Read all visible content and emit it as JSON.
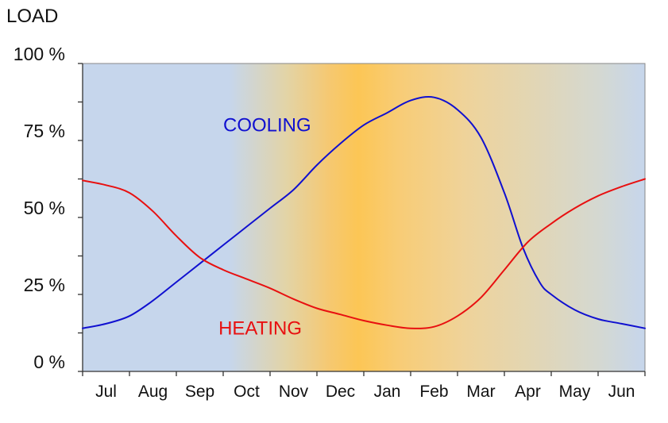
{
  "chart_data": {
    "type": "line",
    "ylabel": "LOAD",
    "xlabel": "",
    "categories": [
      "Jul",
      "Aug",
      "Sep",
      "Oct",
      "Nov",
      "Dec",
      "Jan",
      "Feb",
      "Mar",
      "Apr",
      "May",
      "Jun"
    ],
    "y_ticks": [
      "0 %",
      "25 %",
      "50 %",
      "75 %",
      "100 %"
    ],
    "ylim": [
      0,
      100
    ],
    "grid": false,
    "series": [
      {
        "name": "COOLING",
        "color": "#1010d0",
        "points": [
          [
            0.0,
            14
          ],
          [
            0.5,
            15.5
          ],
          [
            1.0,
            18
          ],
          [
            1.5,
            23
          ],
          [
            2.0,
            29
          ],
          [
            2.5,
            35
          ],
          [
            3.0,
            41
          ],
          [
            3.5,
            47
          ],
          [
            4.0,
            53
          ],
          [
            4.5,
            59
          ],
          [
            5.0,
            67
          ],
          [
            5.5,
            74
          ],
          [
            6.0,
            80
          ],
          [
            6.5,
            84
          ],
          [
            7.0,
            88
          ],
          [
            7.5,
            89
          ],
          [
            8.0,
            85
          ],
          [
            8.5,
            76
          ],
          [
            9.0,
            58
          ],
          [
            9.4,
            40
          ],
          [
            9.75,
            29
          ],
          [
            10.0,
            25
          ],
          [
            10.5,
            20
          ],
          [
            11.0,
            17
          ],
          [
            11.5,
            15.5
          ],
          [
            12.0,
            14
          ]
        ]
      },
      {
        "name": "HEATING",
        "color": "#e81010",
        "points": [
          [
            0.0,
            62
          ],
          [
            0.5,
            60.5
          ],
          [
            1.0,
            58
          ],
          [
            1.5,
            52
          ],
          [
            2.0,
            44
          ],
          [
            2.5,
            37
          ],
          [
            3.0,
            33
          ],
          [
            3.5,
            30
          ],
          [
            4.0,
            27
          ],
          [
            4.5,
            23.5
          ],
          [
            5.0,
            20.5
          ],
          [
            5.5,
            18.5
          ],
          [
            6.0,
            16.5
          ],
          [
            6.5,
            15
          ],
          [
            7.0,
            14
          ],
          [
            7.5,
            14.5
          ],
          [
            8.0,
            18
          ],
          [
            8.5,
            24
          ],
          [
            9.0,
            33
          ],
          [
            9.5,
            42
          ],
          [
            10.0,
            48
          ],
          [
            10.5,
            53
          ],
          [
            11.0,
            57
          ],
          [
            11.5,
            60
          ],
          [
            12.0,
            62.5
          ]
        ]
      }
    ],
    "annotations": [
      {
        "text": "COOLING",
        "color": "#1010d0",
        "x": 3.0,
        "y": 78
      },
      {
        "text": "HEATING",
        "color": "#e81010",
        "x": 2.9,
        "y": 12
      }
    ],
    "background": {
      "description": "seasonal gradient",
      "cool_color": "#c6d6ec",
      "warm_color": "#fcc655"
    }
  }
}
